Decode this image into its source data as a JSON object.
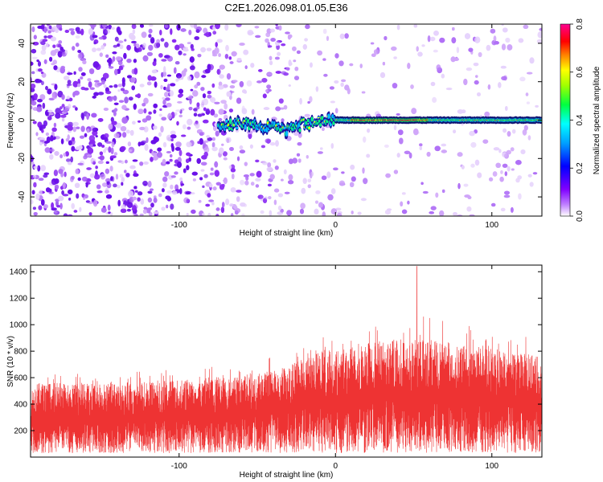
{
  "figure_title": "C2E1.2026.098.01.05.E36",
  "chart_data": [
    {
      "type": "heatmap",
      "xlabel": "Height of straight line (km)",
      "ylabel": "Frequency (Hz)",
      "xlim": [
        -195,
        132
      ],
      "ylim": [
        -50,
        50
      ],
      "x_ticks": [
        -100,
        0,
        100
      ],
      "x_tick_labels": [
        "-100",
        "0",
        "100"
      ],
      "y_ticks": [
        -40,
        -20,
        0,
        20,
        40
      ],
      "y_tick_labels": [
        "-40",
        "-20",
        "0",
        "20",
        "40"
      ],
      "colorbar": {
        "label": "Normalized spectral amplitude",
        "range": [
          0,
          0.8
        ],
        "ticks": [
          0,
          0.2,
          0.4,
          0.6,
          0.8
        ],
        "tick_labels": [
          "0.0",
          "0.2",
          "0.4",
          "0.6",
          "0.8"
        ],
        "colors": [
          "#ffffff",
          "#8000ff",
          "#0000ff",
          "#00ffff",
          "#00ff00",
          "#ffff00",
          "#ff8000",
          "#ff0000",
          "#ff00ff"
        ]
      },
      "signal_band": {
        "description_points_x": [
          -75,
          -60,
          -45,
          -30,
          -20,
          -10,
          0,
          10,
          50,
          100,
          132
        ],
        "description_points_y": [
          -4,
          -1,
          -3,
          -5,
          -2,
          -1,
          0,
          0,
          0,
          0,
          0
        ],
        "peak_amplitude_x_range": [
          10,
          60
        ]
      }
    },
    {
      "type": "line",
      "xlabel": "Height of straight line (km)",
      "ylabel": "SNR (10 * v/v)",
      "xlim": [
        -195,
        132
      ],
      "ylim": [
        0,
        1450
      ],
      "x_ticks": [
        -100,
        0,
        100
      ],
      "x_tick_labels": [
        "-100",
        "0",
        "100"
      ],
      "y_ticks": [
        200,
        400,
        600,
        800,
        1000,
        1200,
        1400
      ],
      "y_tick_labels": [
        "200",
        "400",
        "600",
        "800",
        "1000",
        "1200",
        "1400"
      ],
      "series_color": "#ee3333",
      "envelope": {
        "x": [
          -195,
          -150,
          -100,
          -60,
          -30,
          -15,
          0,
          30,
          50,
          80,
          110,
          132
        ],
        "upper": [
          620,
          620,
          650,
          700,
          780,
          900,
          900,
          1000,
          1050,
          1000,
          920,
          860
        ],
        "lower": [
          30,
          30,
          30,
          30,
          30,
          30,
          30,
          30,
          30,
          30,
          30,
          30
        ],
        "typical_max": [
          560,
          560,
          580,
          620,
          680,
          820,
          800,
          880,
          900,
          860,
          800,
          760
        ]
      },
      "spike": {
        "x": 52,
        "y": 1440
      }
    }
  ]
}
